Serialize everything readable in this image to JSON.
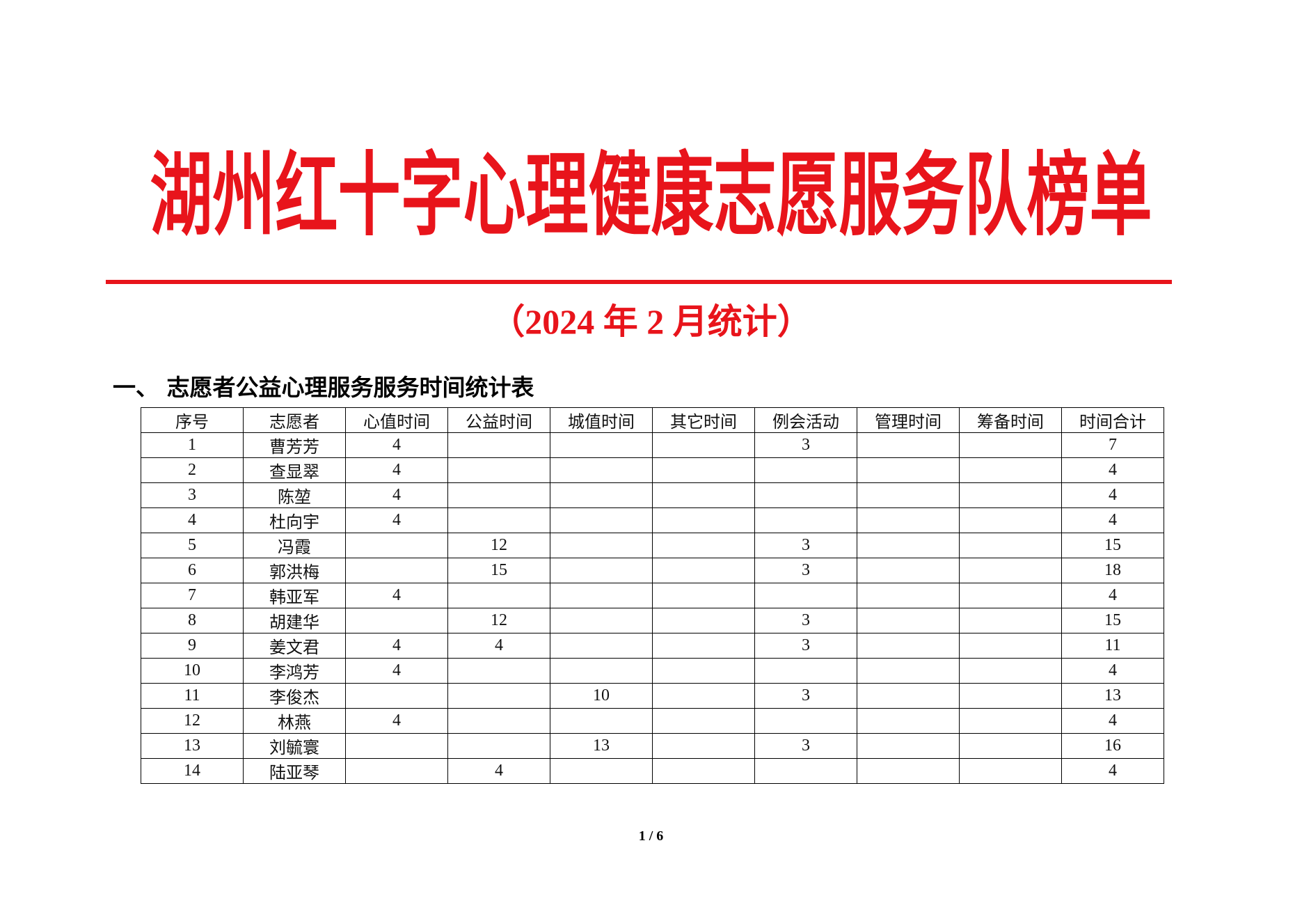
{
  "header": {
    "title": "湖州红十字心理健康志愿服务队榜单",
    "subtitle": "（2024 年 2 月统计）"
  },
  "section": {
    "heading": "一、  志愿者公益心理服务服务时间统计表"
  },
  "table": {
    "columns": [
      "序号",
      "志愿者",
      "心值时间",
      "公益时间",
      "城值时间",
      "其它时间",
      "例会活动",
      "管理时间",
      "筹备时间",
      "时间合计"
    ],
    "rows": [
      [
        1,
        "曹芳芳",
        4,
        null,
        null,
        null,
        3,
        null,
        null,
        7
      ],
      [
        2,
        "查显翠",
        4,
        null,
        null,
        null,
        null,
        null,
        null,
        4
      ],
      [
        3,
        "陈堃",
        4,
        null,
        null,
        null,
        null,
        null,
        null,
        4
      ],
      [
        4,
        "杜向宇",
        4,
        null,
        null,
        null,
        null,
        null,
        null,
        4
      ],
      [
        5,
        "冯霞",
        null,
        12,
        null,
        null,
        3,
        null,
        null,
        15
      ],
      [
        6,
        "郭洪梅",
        null,
        15,
        null,
        null,
        3,
        null,
        null,
        18
      ],
      [
        7,
        "韩亚军",
        4,
        null,
        null,
        null,
        null,
        null,
        null,
        4
      ],
      [
        8,
        "胡建华",
        null,
        12,
        null,
        null,
        3,
        null,
        null,
        15
      ],
      [
        9,
        "姜文君",
        4,
        4,
        null,
        null,
        3,
        null,
        null,
        11
      ],
      [
        10,
        "李鸿芳",
        4,
        null,
        null,
        null,
        null,
        null,
        null,
        4
      ],
      [
        11,
        "李俊杰",
        null,
        null,
        10,
        null,
        3,
        null,
        null,
        13
      ],
      [
        12,
        "林燕",
        4,
        null,
        null,
        null,
        null,
        null,
        null,
        4
      ],
      [
        13,
        "刘毓寰",
        null,
        null,
        13,
        null,
        3,
        null,
        null,
        16
      ],
      [
        14,
        "陆亚琴",
        null,
        4,
        null,
        null,
        null,
        null,
        null,
        4
      ]
    ]
  },
  "footer": {
    "page": "1 / 6"
  }
}
